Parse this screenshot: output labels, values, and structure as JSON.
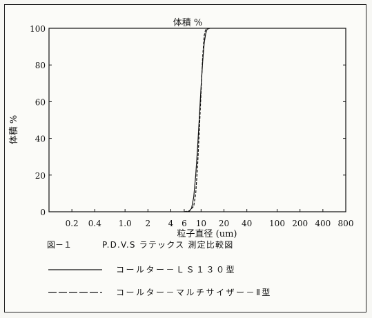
{
  "chart_data": {
    "type": "line",
    "title": "体積 %",
    "xlabel": "粒子直径 (um)",
    "ylabel": "体積 %",
    "xscale": "log",
    "xlim": [
      0.1,
      800
    ],
    "ylim": [
      0,
      100
    ],
    "xticks": [
      0.2,
      0.4,
      1.0,
      2,
      4,
      6,
      10,
      20,
      40,
      100,
      200,
      400,
      800
    ],
    "xtick_labels": [
      "0.2",
      "0.4",
      "1.0",
      "2",
      "4",
      "6",
      "10",
      "20",
      "40",
      "100",
      "200",
      "400",
      "800"
    ],
    "yticks": [
      0,
      20,
      40,
      60,
      80,
      100
    ],
    "ytick_labels": [
      "0",
      "20",
      "40",
      "60",
      "80",
      "100"
    ],
    "grid": false,
    "series": [
      {
        "name": "コールターＬＳ１３０型",
        "style": "solid",
        "points": [
          [
            6.5,
            0
          ],
          [
            7.0,
            0.3
          ],
          [
            7.5,
            2
          ],
          [
            8.0,
            8
          ],
          [
            8.5,
            20
          ],
          [
            9.0,
            35
          ],
          [
            9.5,
            52
          ],
          [
            10.0,
            68
          ],
          [
            10.5,
            82
          ],
          [
            11.0,
            92
          ],
          [
            11.5,
            97
          ],
          [
            12.0,
            99.5
          ],
          [
            13.0,
            100
          ]
        ]
      },
      {
        "name": "コールターマルチサイザーⅡ型",
        "style": "dashed",
        "points": [
          [
            6.0,
            0
          ],
          [
            7.0,
            0.5
          ],
          [
            8.0,
            3
          ],
          [
            8.5,
            10
          ],
          [
            9.0,
            25
          ],
          [
            9.5,
            45
          ],
          [
            10.0,
            65
          ],
          [
            10.5,
            85
          ],
          [
            11.0,
            96
          ],
          [
            11.5,
            99.5
          ],
          [
            12.0,
            100
          ]
        ]
      }
    ]
  },
  "caption": {
    "figure_label": "図－１",
    "title": "P.D.V.S ラテックス 測定比較図"
  },
  "legend": {
    "solid_label": "コールター－ＬＳ１３０型",
    "dashed_label": "コールター－マルチサイザー－Ⅱ型"
  }
}
